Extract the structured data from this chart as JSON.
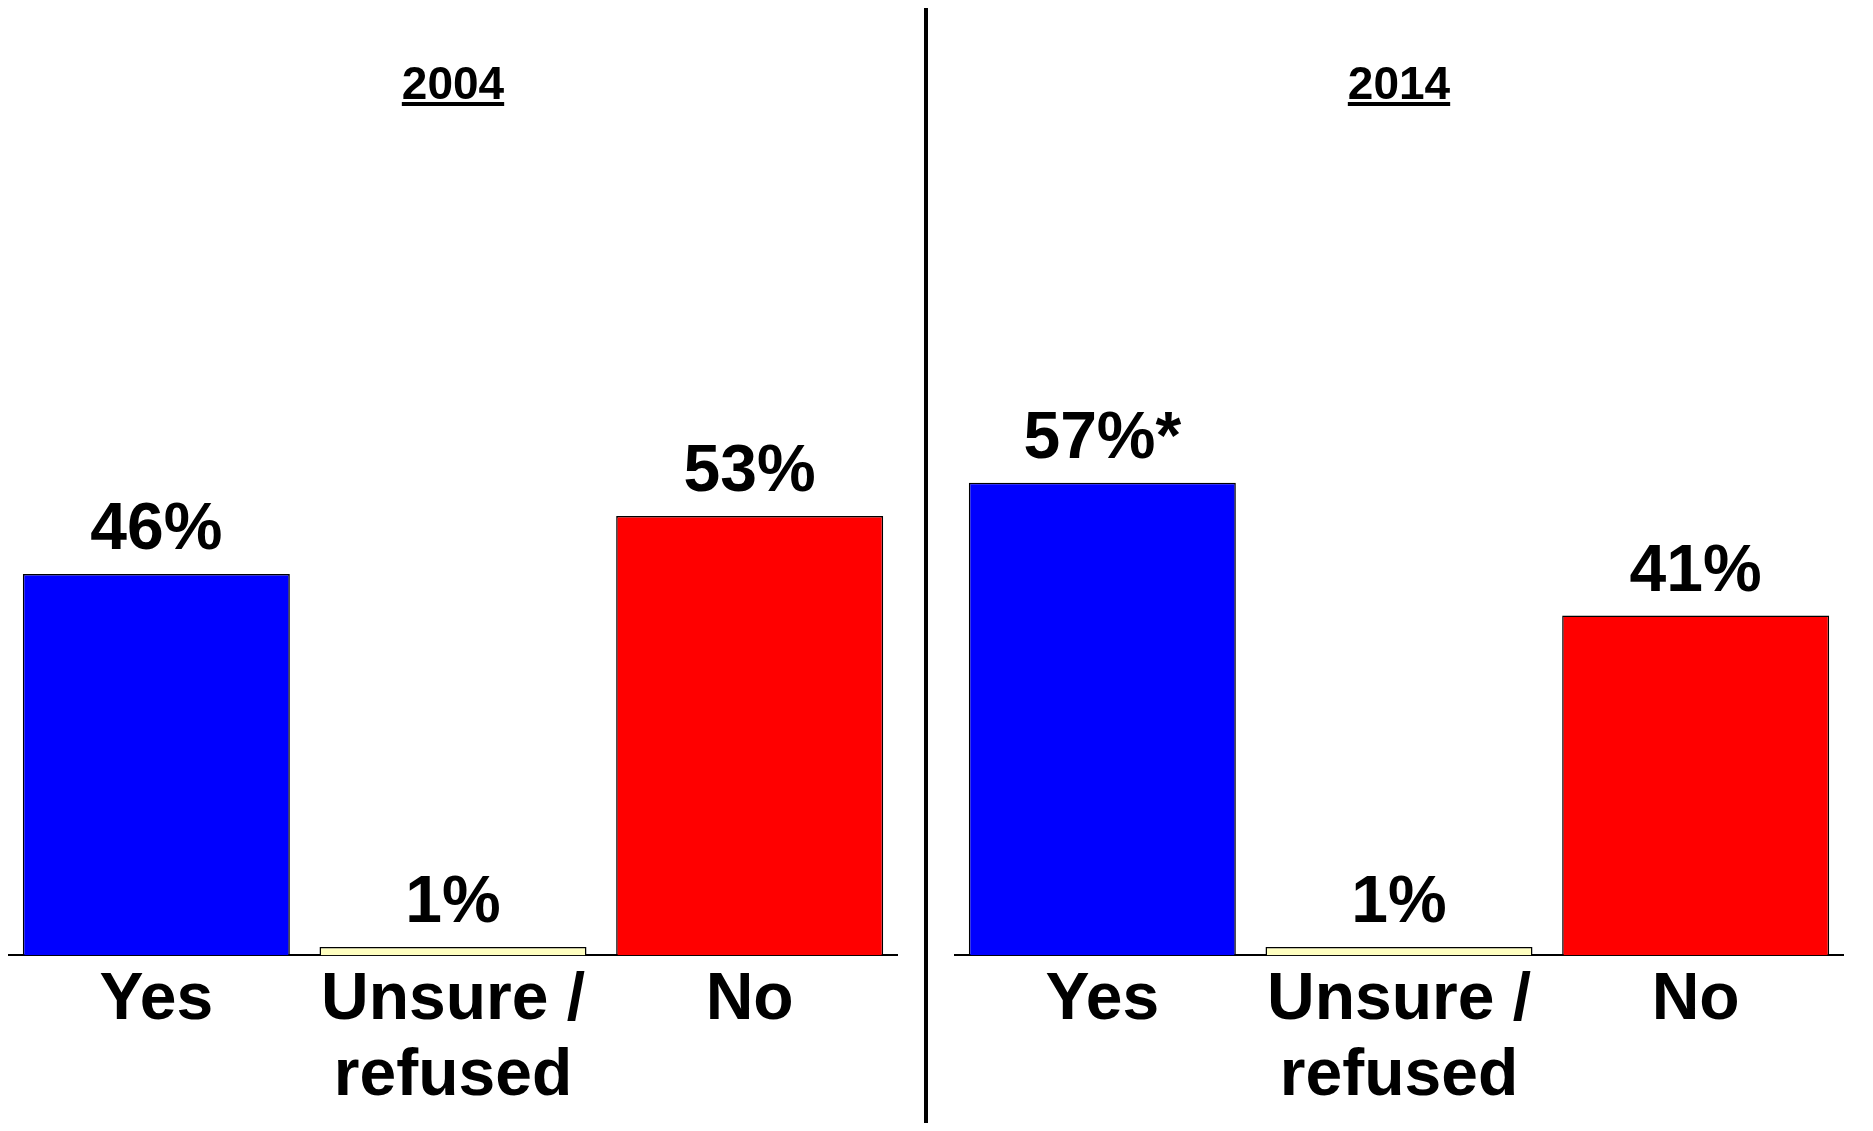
{
  "chart_data": [
    {
      "type": "bar",
      "title": "2004",
      "categories": [
        "Yes",
        "Unsure / refused",
        "No"
      ],
      "values": [
        46,
        1,
        53
      ],
      "colors": [
        "#0000ff",
        "#ffffc0",
        "#ff0000"
      ],
      "value_labels": [
        "46%",
        "1%",
        "53%"
      ]
    },
    {
      "type": "bar",
      "title": "2014",
      "categories": [
        "Yes",
        "Unsure / refused",
        "No"
      ],
      "values": [
        57,
        1,
        41
      ],
      "colors": [
        "#0000ff",
        "#ffffc0",
        "#ff0000"
      ],
      "value_labels": [
        "57%*",
        "1%",
        "41%"
      ]
    }
  ]
}
